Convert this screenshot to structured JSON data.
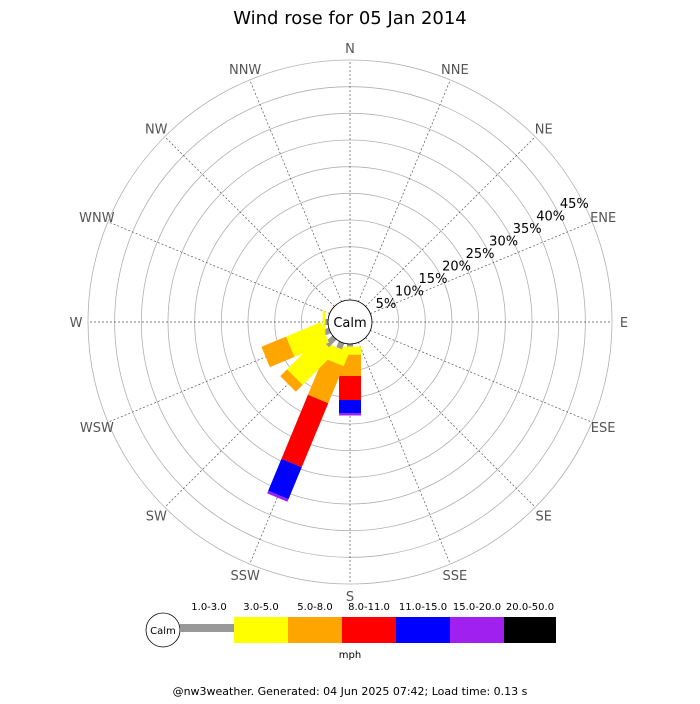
{
  "chart_data": {
    "type": "windrose",
    "title": "Wind rose for 05 Jan 2014",
    "directions": [
      "N",
      "NNE",
      "NE",
      "ENE",
      "E",
      "ESE",
      "SE",
      "SSE",
      "S",
      "SSW",
      "SW",
      "WSW",
      "W",
      "WNW",
      "NW",
      "NNW"
    ],
    "radial_ticks": [
      "5%",
      "10%",
      "15%",
      "20%",
      "25%",
      "30%",
      "35%",
      "40%",
      "45%"
    ],
    "radial_max": 45,
    "calm_label": "Calm",
    "unit": "mph",
    "speed_bins": [
      {
        "label": "1.0-3.0",
        "color": "#999999"
      },
      {
        "label": "3.0-5.0",
        "color": "#ffff00"
      },
      {
        "label": "5.0-8.0",
        "color": "#ffa500"
      },
      {
        "label": "8.0-11.0",
        "color": "#ff0000"
      },
      {
        "label": "11.0-15.0",
        "color": "#0000ff"
      },
      {
        "label": "15.0-20.0",
        "color": "#a020f0"
      },
      {
        "label": "20.0-50.0",
        "color": "#000000"
      }
    ],
    "series": [
      {
        "direction": "S",
        "values": [
          0.5,
          1.5,
          4.0,
          4.5,
          2.5,
          0.4,
          0
        ]
      },
      {
        "direction": "SSW",
        "values": [
          1.2,
          2.8,
          7.5,
          13.0,
          6.5,
          0.5,
          0
        ]
      },
      {
        "direction": "SW",
        "values": [
          2.0,
          8.5,
          1.8,
          0,
          0,
          0,
          0
        ]
      },
      {
        "direction": "WSW",
        "values": [
          1.0,
          7.0,
          5.0,
          0,
          0,
          0,
          0
        ]
      },
      {
        "direction": "W",
        "values": [
          0.5,
          0.5,
          0,
          0,
          0,
          0,
          0
        ]
      }
    ]
  },
  "footer": "@nw3weather. Generated: 04 Jun 2025 07:42; Load time: 0.13 s"
}
